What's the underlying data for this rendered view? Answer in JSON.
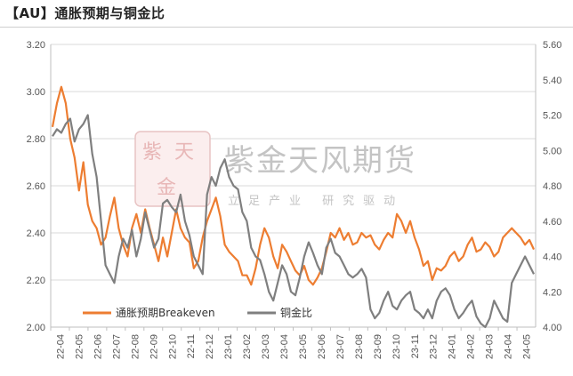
{
  "title": "【AU】通胀预期与铜金比",
  "watermark": {
    "name": "紫金天风期货",
    "slogan": "立足产业 研究驱动",
    "seal_chars": [
      "紫",
      "天",
      "金"
    ]
  },
  "colors": {
    "breakeven": "#ED7D31",
    "copper_gold": "#7F7F7F",
    "grid": "#d9d9d9",
    "axis": "#bfbfbf"
  },
  "chart_data": {
    "type": "line",
    "title": "【AU】通胀预期与铜金比",
    "x_tick_labels": [
      "22-04",
      "22-05",
      "22-06",
      "22-07",
      "22-08",
      "22-09",
      "22-10",
      "22-11",
      "22-12",
      "23-01",
      "23-02",
      "23-03",
      "23-04",
      "23-05",
      "23-06",
      "23-07",
      "23-08",
      "23-09",
      "23-10",
      "23-11",
      "23-12",
      "24-01",
      "24-02",
      "24-03",
      "24-04",
      "24-05"
    ],
    "y_left": {
      "min": 2.0,
      "max": 3.2,
      "ticks": [
        "2.00",
        "2.20",
        "2.40",
        "2.60",
        "2.80",
        "3.00",
        "3.20"
      ]
    },
    "y_right": {
      "min": 4.0,
      "max": 5.6,
      "ticks": [
        "4.00",
        "4.20",
        "4.40",
        "4.60",
        "4.80",
        "5.00",
        "5.20",
        "5.40",
        "5.60"
      ]
    },
    "grid": "horizontal",
    "legend_position": "bottom-left",
    "series": [
      {
        "name": "通胀预期Breakeven",
        "axis": "left",
        "values": [
          2.85,
          2.95,
          3.02,
          2.95,
          2.8,
          2.72,
          2.58,
          2.7,
          2.52,
          2.45,
          2.42,
          2.35,
          2.38,
          2.47,
          2.55,
          2.42,
          2.35,
          2.3,
          2.42,
          2.48,
          2.4,
          2.5,
          2.42,
          2.35,
          2.28,
          2.38,
          2.3,
          2.4,
          2.5,
          2.42,
          2.38,
          2.36,
          2.25,
          2.28,
          2.38,
          2.45,
          2.5,
          2.55,
          2.47,
          2.35,
          2.32,
          2.3,
          2.28,
          2.22,
          2.22,
          2.18,
          2.25,
          2.35,
          2.42,
          2.38,
          2.3,
          2.25,
          2.35,
          2.32,
          2.28,
          2.24,
          2.22,
          2.26,
          2.2,
          2.18,
          2.21,
          2.25,
          2.32,
          2.4,
          2.38,
          2.42,
          2.37,
          2.4,
          2.35,
          2.36,
          2.4,
          2.38,
          2.39,
          2.35,
          2.33,
          2.37,
          2.4,
          2.38,
          2.48,
          2.45,
          2.4,
          2.45,
          2.38,
          2.33,
          2.26,
          2.28,
          2.2,
          2.25,
          2.24,
          2.26,
          2.3,
          2.32,
          2.28,
          2.3,
          2.35,
          2.38,
          2.32,
          2.33,
          2.36,
          2.34,
          2.3,
          2.32,
          2.38,
          2.4,
          2.42,
          2.4,
          2.38,
          2.35,
          2.37,
          2.33
        ]
      },
      {
        "name": "铜金比",
        "axis": "right",
        "values": [
          5.08,
          5.12,
          5.1,
          5.15,
          5.18,
          5.05,
          5.12,
          5.15,
          5.2,
          4.98,
          4.85,
          4.6,
          4.35,
          4.3,
          4.25,
          4.4,
          4.5,
          4.45,
          4.55,
          4.4,
          4.5,
          4.65,
          4.55,
          4.45,
          4.5,
          4.7,
          4.72,
          4.68,
          4.65,
          4.75,
          4.6,
          4.52,
          4.4,
          4.35,
          4.3,
          4.75,
          4.85,
          4.8,
          4.9,
          4.95,
          4.85,
          4.8,
          4.78,
          4.65,
          4.6,
          4.45,
          4.4,
          4.38,
          4.3,
          4.2,
          4.15,
          4.25,
          4.35,
          4.3,
          4.2,
          4.18,
          4.28,
          4.4,
          4.48,
          4.42,
          4.35,
          4.3,
          4.45,
          4.5,
          4.42,
          4.4,
          4.35,
          4.3,
          4.28,
          4.3,
          4.33,
          4.28,
          4.1,
          4.05,
          4.08,
          4.15,
          4.2,
          4.12,
          4.1,
          4.15,
          4.18,
          4.2,
          4.1,
          4.08,
          4.05,
          4.1,
          4.05,
          4.15,
          4.2,
          4.22,
          4.18,
          4.1,
          4.05,
          4.08,
          4.12,
          4.15,
          4.06,
          4.02,
          4.0,
          4.05,
          4.15,
          4.1,
          4.05,
          4.03,
          4.25,
          4.3,
          4.35,
          4.4,
          4.35,
          4.3
        ]
      }
    ]
  }
}
